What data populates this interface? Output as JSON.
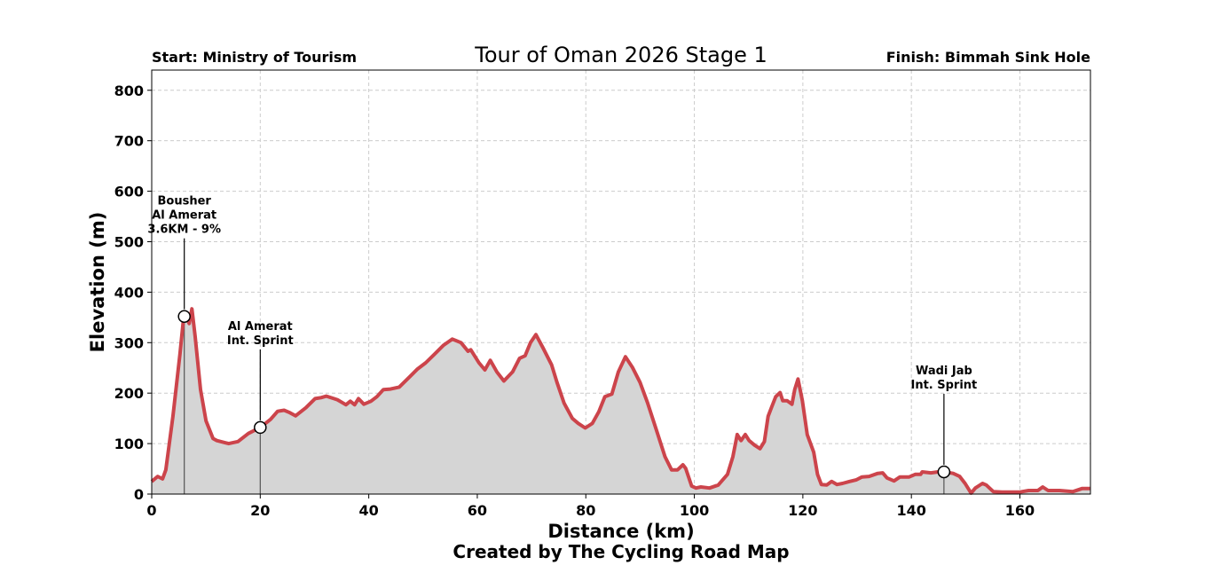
{
  "chart_data": {
    "type": "area",
    "title": "Tour of Oman 2026 Stage 1",
    "start_label": "Start: Ministry of Tourism",
    "finish_label": "Finish: Bimmah Sink Hole",
    "xlabel": "Distance (km)",
    "ylabel": "Elevation (m)",
    "credit": "Created by The Cycling Road Map",
    "xlim": [
      0,
      173
    ],
    "ylim": [
      0,
      840
    ],
    "xticks": [
      0,
      20,
      40,
      60,
      80,
      100,
      120,
      140,
      160
    ],
    "yticks": [
      0,
      100,
      200,
      300,
      400,
      500,
      600,
      700,
      800
    ],
    "grid": true,
    "line_color": "#cc444b",
    "fill_color": "#d5d5d5",
    "x": [
      0,
      1.1,
      2,
      2.6,
      3.9,
      5.2,
      5.9,
      6.4,
      6.9,
      7.4,
      8,
      9,
      10,
      11.3,
      12,
      14.2,
      15.9,
      17.8,
      20,
      21.9,
      23.2,
      24.4,
      25.3,
      26.5,
      28.4,
      30.1,
      31.2,
      32.2,
      34.2,
      35.8,
      36.6,
      37.4,
      38.1,
      39.1,
      40.4,
      41.5,
      42.7,
      44,
      45.6,
      47.6,
      48.9,
      50.5,
      52.1,
      53.8,
      55.4,
      57,
      58.3,
      58.8,
      60.3,
      61.4,
      62.4,
      63.6,
      64.9,
      66.5,
      67.8,
      68.8,
      69.8,
      70.8,
      72.1,
      73.7,
      74.7,
      76,
      77.5,
      78.6,
      79.9,
      81.2,
      82.4,
      83.5,
      84.8,
      86,
      87.3,
      88.6,
      90,
      91.4,
      93,
      94.6,
      95.8,
      96.9,
      97.9,
      98.4,
      99.5,
      100.3,
      101.2,
      102.8,
      104.4,
      106.1,
      107.1,
      107.9,
      108.6,
      109.4,
      110.1,
      111.1,
      112.1,
      112.9,
      113.6,
      114.2,
      115,
      115.8,
      116.3,
      117.1,
      118,
      118.5,
      119.1,
      119.9,
      120.8,
      122,
      122.7,
      123.4,
      124.4,
      125.3,
      126.3,
      127.3,
      128.6,
      129.8,
      130.9,
      132.2,
      133.8,
      134.7,
      135.5,
      136.8,
      137.9,
      139.6,
      140.7,
      141.7,
      142,
      143.6,
      144.9,
      146.1,
      147.7,
      148.9,
      149.9,
      151,
      151.8,
      153.1,
      153.8,
      155.1,
      156.7,
      158.4,
      160,
      161.6,
      163.3,
      164.2,
      165.2,
      167.3,
      169.8,
      171.5,
      172.9
    ],
    "y": [
      25,
      35,
      30,
      48,
      154,
      277,
      352,
      352,
      338,
      367,
      313,
      207,
      145,
      110,
      106,
      100,
      104,
      120,
      132,
      148,
      164,
      166,
      162,
      155,
      171,
      189,
      191,
      194,
      187,
      177,
      184,
      177,
      189,
      178,
      184,
      193,
      207,
      208,
      212,
      233,
      247,
      260,
      277,
      295,
      307,
      300,
      283,
      286,
      260,
      246,
      265,
      242,
      224,
      242,
      269,
      274,
      300,
      316,
      290,
      256,
      221,
      180,
      150,
      140,
      131,
      140,
      163,
      193,
      198,
      242,
      272,
      251,
      221,
      180,
      127,
      74,
      48,
      48,
      58,
      51,
      16,
      12,
      14,
      12,
      18,
      39,
      74,
      118,
      106,
      118,
      106,
      97,
      90,
      104,
      154,
      171,
      193,
      201,
      185,
      185,
      178,
      207,
      228,
      185,
      118,
      83,
      39,
      19,
      18,
      25,
      19,
      21,
      25,
      28,
      34,
      35,
      41,
      42,
      32,
      26,
      34,
      34,
      39,
      39,
      44,
      42,
      44,
      44,
      41,
      35,
      21,
      2,
      12,
      21,
      18,
      5,
      4,
      4,
      4,
      7,
      7,
      14,
      7,
      7,
      5,
      11,
      11
    ],
    "annotations": [
      {
        "x": 6,
        "y": 352,
        "lines": [
          "Bousher",
          "Al Amerat",
          "3.6KM - 9%"
        ]
      },
      {
        "x": 20,
        "y": 132,
        "lines": [
          "Al Amerat",
          "Int. Sprint"
        ]
      },
      {
        "x": 146,
        "y": 44,
        "lines": [
          "Wadi Jab",
          "Int. Sprint"
        ]
      }
    ]
  }
}
